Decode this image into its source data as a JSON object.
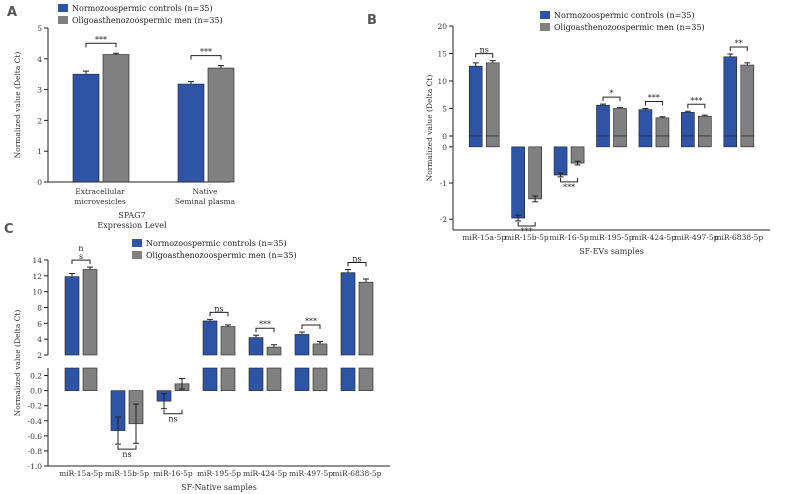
{
  "colors": {
    "series1": "#2e54a6",
    "series2": "#808080"
  },
  "chart_data": [
    {
      "panel": "A",
      "type": "bar",
      "categories": [
        [
          "Extracellular",
          "microvesicles"
        ],
        [
          "Native",
          "Seminal plasma"
        ]
      ],
      "series": [
        {
          "name": "Normozoospermic controls (n=35)",
          "values": [
            3.5,
            3.18
          ],
          "errors": [
            0.1,
            0.08
          ]
        },
        {
          "name": "Oligoasthenozoospermic men (n=35)",
          "values": [
            4.14,
            3.7
          ],
          "errors": [
            0.04,
            0.08
          ]
        }
      ],
      "significance": [
        "***",
        "***"
      ],
      "ylabel": "Normalized value (Delta Ct)",
      "xlabel": "SPAG7",
      "xlabel2": "Expression Level",
      "ylim": [
        0,
        5
      ],
      "yticks": [
        "0",
        "1",
        "2",
        "3",
        "4",
        "5"
      ]
    },
    {
      "panel": "B",
      "type": "bar",
      "categories": [
        "miR-15a-5p",
        "miR-15b-5p",
        "miR-16-5p",
        "miR-195-5p",
        "miR-424-5p",
        "miR-497-5p",
        "miR-6838-5p"
      ],
      "series": [
        {
          "name": "Normozoospermic controls (n=35)",
          "values": [
            12.7,
            -1.97,
            -0.78,
            5.6,
            4.8,
            4.3,
            14.4
          ],
          "errors": [
            0.6,
            0.08,
            0.05,
            0.2,
            0.2,
            0.2,
            0.5
          ]
        },
        {
          "name": "Oligoasthenozoospermic men (n=35)",
          "values": [
            13.3,
            -1.44,
            -0.45,
            5.0,
            3.3,
            3.6,
            12.9
          ],
          "errors": [
            0.4,
            0.08,
            0.05,
            0.2,
            0.2,
            0.2,
            0.4
          ]
        }
      ],
      "significance": [
        "ns",
        "***",
        "***",
        "*",
        "***",
        "***",
        "**"
      ],
      "ylabel": "Normalized value (Delta Ct)",
      "xlabel": "SF-EVs samples",
      "upper_ylim": [
        0,
        20
      ],
      "upper_yticks": [
        "0",
        "5",
        "10",
        "15",
        "20"
      ],
      "lower_ylim": [
        -2.3,
        0.3
      ],
      "lower_yticks": [
        "0",
        "-1",
        "-2"
      ]
    },
    {
      "panel": "C",
      "type": "bar",
      "categories": [
        "miR-15a-5p",
        "miR-15b-5p",
        "miR-16-5p",
        "miR-195-5p",
        "miR-424-5p",
        "miR-497-5p",
        "miR-6838-5p"
      ],
      "series": [
        {
          "name": "Normozoospermic controls (n=35)",
          "values": [
            11.9,
            -0.53,
            -0.14,
            6.3,
            4.2,
            4.6,
            12.4
          ],
          "errors": [
            0.4,
            0.18,
            0.1,
            0.2,
            0.3,
            0.3,
            0.4
          ]
        },
        {
          "name": "Oligoasthenozoospermic men (n=35)",
          "values": [
            12.8,
            -0.44,
            0.09,
            5.6,
            3.0,
            3.4,
            11.2
          ],
          "errors": [
            0.3,
            0.26,
            0.07,
            0.2,
            0.3,
            0.3,
            0.4
          ]
        }
      ],
      "significance": [
        [
          "n",
          "s"
        ],
        [
          "ns"
        ],
        [
          "ns"
        ],
        [
          "ns"
        ],
        [
          "***"
        ],
        [
          "***"
        ],
        [
          "ns"
        ]
      ],
      "ylabel": "Normalized value (Delta Ct)",
      "xlabel": "SF-Native samples",
      "upper_ylim": [
        2,
        14
      ],
      "upper_yticks": [
        "2",
        "4",
        "6",
        "8",
        "10",
        "12",
        "14"
      ],
      "lower_ylim": [
        -1.0,
        0.3
      ],
      "lower_yticks": [
        "0.2",
        "0.0",
        "-0.2",
        "-0.4",
        "-0.6",
        "-0.8",
        "-1.0"
      ]
    }
  ]
}
